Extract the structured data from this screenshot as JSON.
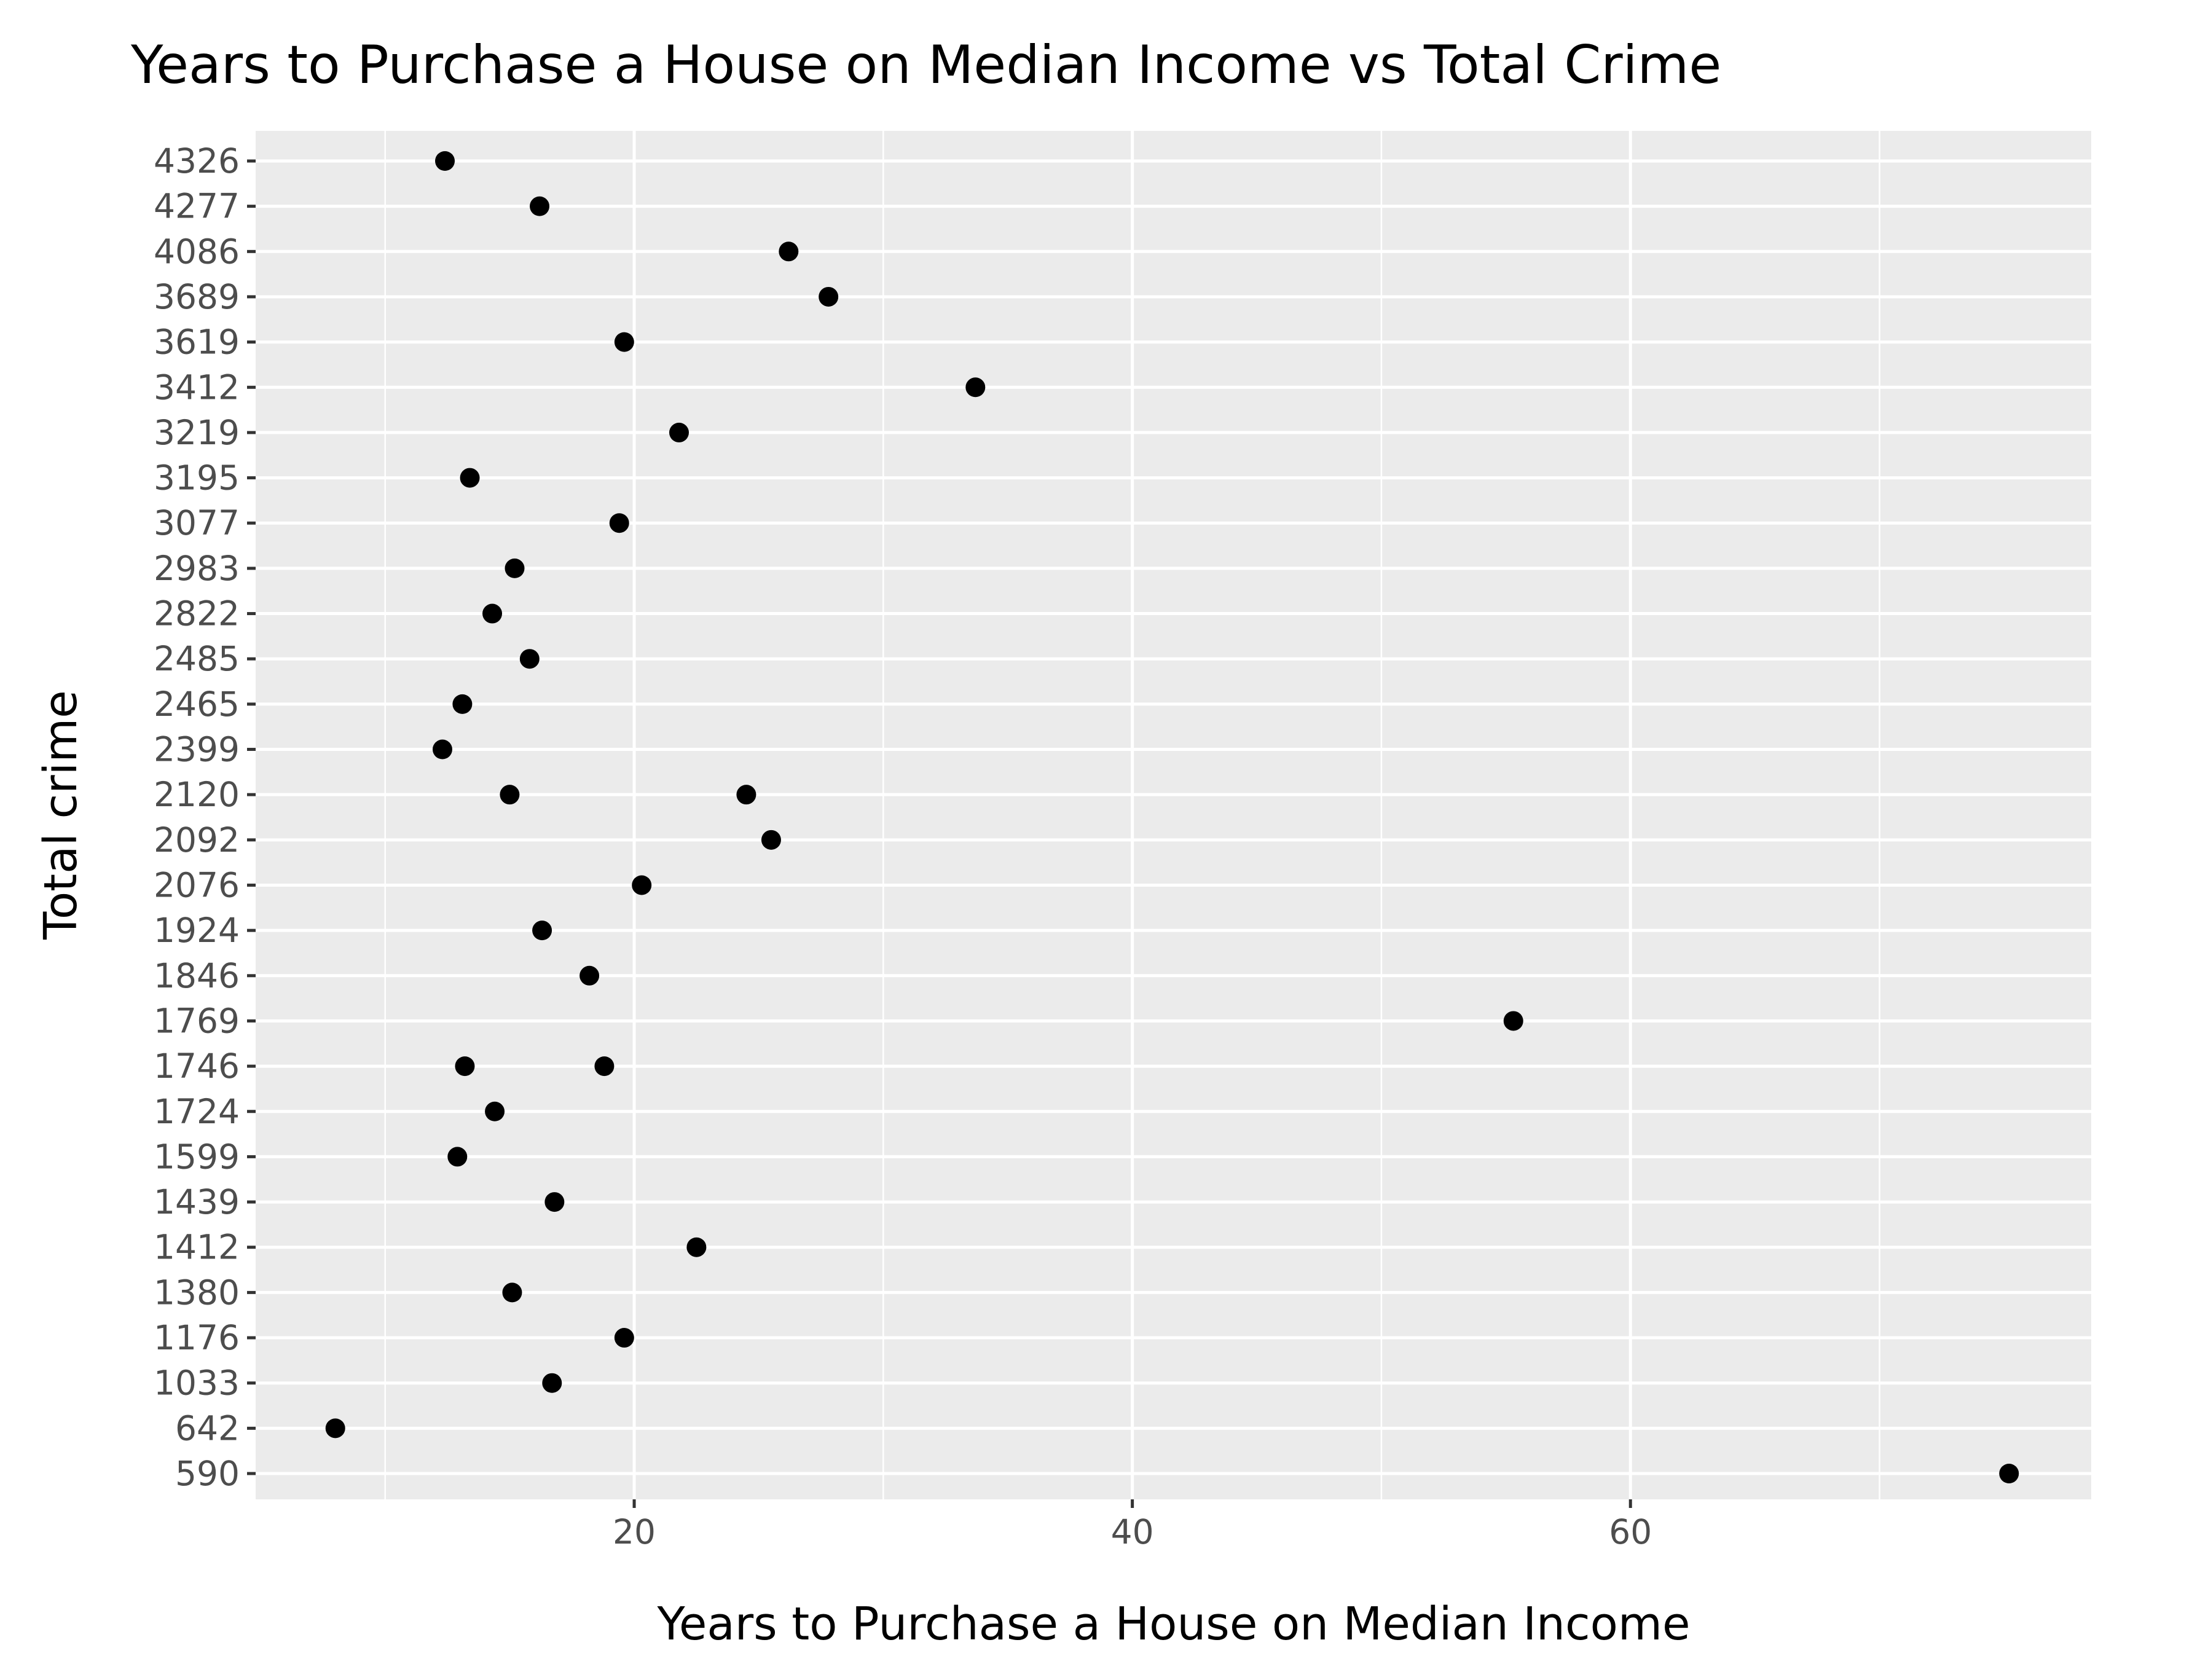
{
  "chart_data": {
    "type": "scatter",
    "title": "Years to Purchase a House on Median Income vs Total Crime",
    "xlabel": "Years to Purchase a House on Median Income",
    "ylabel": "Total crime",
    "xlim": [
      4.8,
      78.5
    ],
    "x_ticks": [
      20,
      40,
      60
    ],
    "x_tick_labels": [
      "20",
      "40",
      "60"
    ],
    "x_minor_ticks": [
      10,
      30,
      50,
      70
    ],
    "y_axis_scale": "discrete",
    "y_categories": [
      "590",
      "642",
      "1033",
      "1176",
      "1380",
      "1412",
      "1439",
      "1599",
      "1724",
      "1746",
      "1769",
      "1846",
      "1924",
      "2076",
      "2092",
      "2120",
      "2399",
      "2465",
      "2485",
      "2822",
      "2983",
      "3077",
      "3195",
      "3219",
      "3412",
      "3619",
      "3689",
      "4086",
      "4277",
      "4326"
    ],
    "grid": true,
    "point_color": "#000000",
    "panel_color": "#ebebeb",
    "points": [
      {
        "x": 12.4,
        "y": "4326"
      },
      {
        "x": 16.2,
        "y": "4277"
      },
      {
        "x": 26.2,
        "y": "4086"
      },
      {
        "x": 27.8,
        "y": "3689"
      },
      {
        "x": 19.6,
        "y": "3619"
      },
      {
        "x": 33.7,
        "y": "3412"
      },
      {
        "x": 21.8,
        "y": "3219"
      },
      {
        "x": 13.4,
        "y": "3195"
      },
      {
        "x": 19.4,
        "y": "3077"
      },
      {
        "x": 15.2,
        "y": "2983"
      },
      {
        "x": 14.3,
        "y": "2822"
      },
      {
        "x": 15.8,
        "y": "2485"
      },
      {
        "x": 13.1,
        "y": "2465"
      },
      {
        "x": 12.3,
        "y": "2399"
      },
      {
        "x": 15.0,
        "y": "2120"
      },
      {
        "x": 24.5,
        "y": "2120"
      },
      {
        "x": 25.5,
        "y": "2092"
      },
      {
        "x": 20.3,
        "y": "2076"
      },
      {
        "x": 16.3,
        "y": "1924"
      },
      {
        "x": 18.2,
        "y": "1846"
      },
      {
        "x": 55.3,
        "y": "1769"
      },
      {
        "x": 13.2,
        "y": "1746"
      },
      {
        "x": 18.8,
        "y": "1746"
      },
      {
        "x": 14.4,
        "y": "1724"
      },
      {
        "x": 12.9,
        "y": "1599"
      },
      {
        "x": 16.8,
        "y": "1439"
      },
      {
        "x": 22.5,
        "y": "1412"
      },
      {
        "x": 15.1,
        "y": "1380"
      },
      {
        "x": 19.6,
        "y": "1176"
      },
      {
        "x": 16.7,
        "y": "1033"
      },
      {
        "x": 8.0,
        "y": "642"
      },
      {
        "x": 75.2,
        "y": "590"
      }
    ]
  }
}
